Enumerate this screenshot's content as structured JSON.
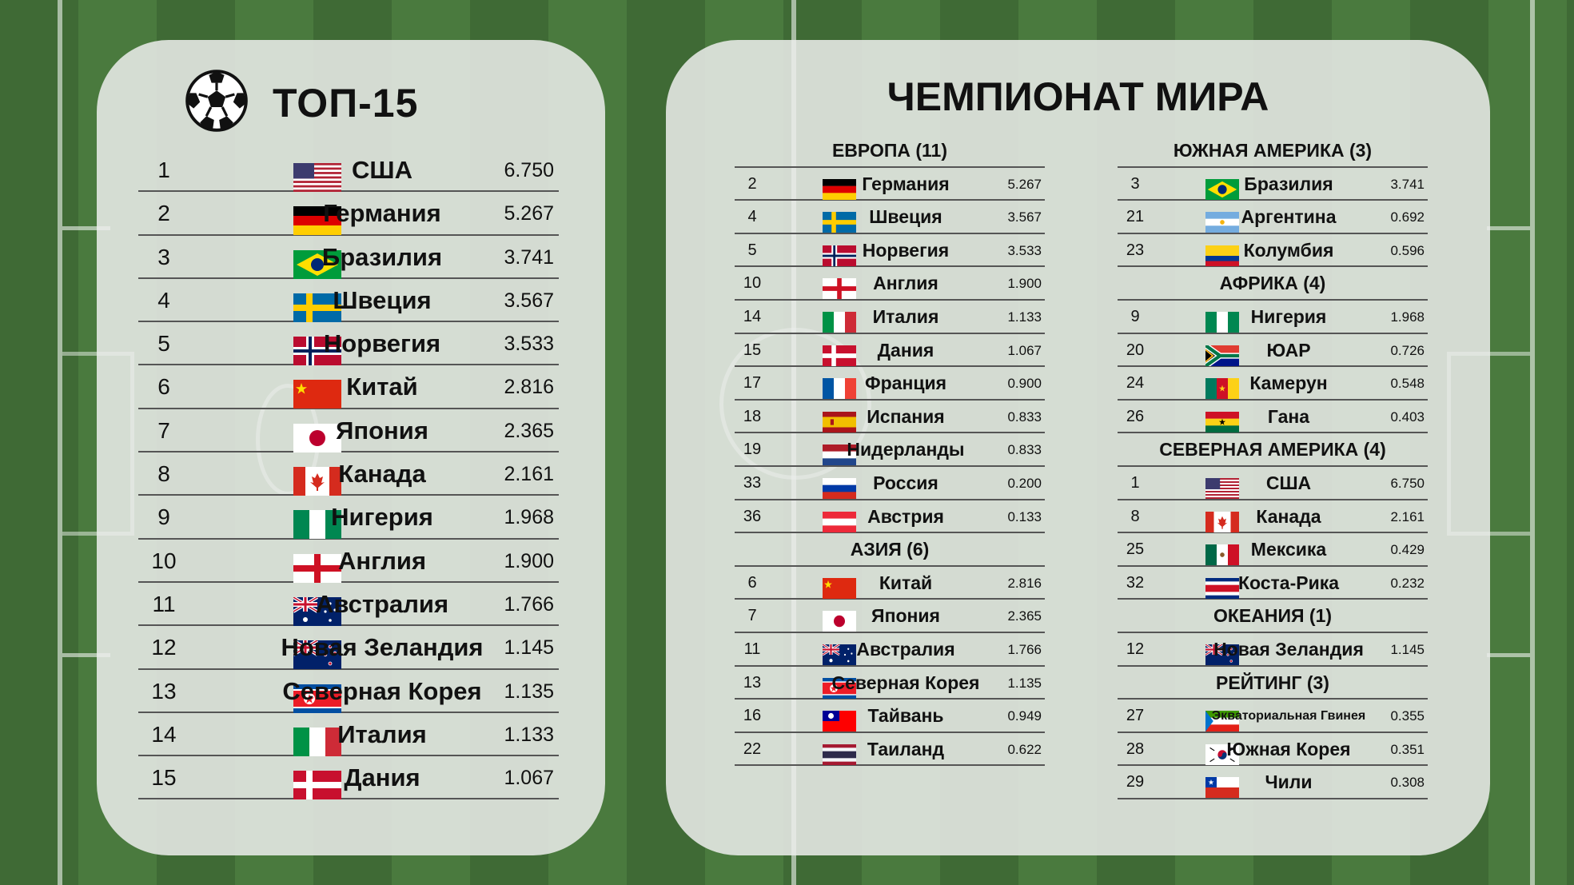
{
  "left": {
    "title": "ТОП-15",
    "rows": [
      {
        "rank": "1",
        "flag": "usa-flag-icon",
        "name": "США",
        "value": "6.750"
      },
      {
        "rank": "2",
        "flag": "germany-flag-icon",
        "name": "Германия",
        "value": "5.267"
      },
      {
        "rank": "3",
        "flag": "brazil-flag-icon",
        "name": "Бразилия",
        "value": "3.741"
      },
      {
        "rank": "4",
        "flag": "sweden-flag-icon",
        "name": "Швеция",
        "value": "3.567"
      },
      {
        "rank": "5",
        "flag": "norway-flag-icon",
        "name": "Норвегия",
        "value": "3.533"
      },
      {
        "rank": "6",
        "flag": "china-flag-icon",
        "name": "Китай",
        "value": "2.816"
      },
      {
        "rank": "7",
        "flag": "japan-flag-icon",
        "name": "Япония",
        "value": "2.365"
      },
      {
        "rank": "8",
        "flag": "canada-flag-icon",
        "name": "Канада",
        "value": "2.161"
      },
      {
        "rank": "9",
        "flag": "nigeria-flag-icon",
        "name": "Нигерия",
        "value": "1.968"
      },
      {
        "rank": "10",
        "flag": "england-flag-icon",
        "name": "Англия",
        "value": "1.900"
      },
      {
        "rank": "11",
        "flag": "australia-flag-icon",
        "name": "Австралия",
        "value": "1.766"
      },
      {
        "rank": "12",
        "flag": "new-zealand-flag-icon",
        "name": "Новая Зеландия",
        "value": "1.145"
      },
      {
        "rank": "13",
        "flag": "north-korea-flag-icon",
        "name": "Северная Корея",
        "value": "1.135"
      },
      {
        "rank": "14",
        "flag": "italy-flag-icon",
        "name": "Италия",
        "value": "1.133"
      },
      {
        "rank": "15",
        "flag": "denmark-flag-icon",
        "name": "Дания",
        "value": "1.067"
      }
    ]
  },
  "right": {
    "title": "ЧЕМПИОНАТ МИРА",
    "column_a": [
      {
        "section": "ЕВРОПА (11)",
        "rows": [
          {
            "rank": "2",
            "flag": "germany-flag-icon",
            "name": "Германия",
            "value": "5.267"
          },
          {
            "rank": "4",
            "flag": "sweden-flag-icon",
            "name": "Швеция",
            "value": "3.567"
          },
          {
            "rank": "5",
            "flag": "norway-flag-icon",
            "name": "Норвегия",
            "value": "3.533"
          },
          {
            "rank": "10",
            "flag": "england-flag-icon",
            "name": "Англия",
            "value": "1.900"
          },
          {
            "rank": "14",
            "flag": "italy-flag-icon",
            "name": "Италия",
            "value": "1.133"
          },
          {
            "rank": "15",
            "flag": "denmark-flag-icon",
            "name": "Дания",
            "value": "1.067"
          },
          {
            "rank": "17",
            "flag": "france-flag-icon",
            "name": "Франция",
            "value": "0.900"
          },
          {
            "rank": "18",
            "flag": "spain-flag-icon",
            "name": "Испания",
            "value": "0.833"
          },
          {
            "rank": "19",
            "flag": "netherlands-flag-icon",
            "name": "Нидерланды",
            "value": "0.833"
          },
          {
            "rank": "33",
            "flag": "russia-flag-icon",
            "name": "Россия",
            "value": "0.200"
          },
          {
            "rank": "36",
            "flag": "austria-flag-icon",
            "name": "Австрия",
            "value": "0.133"
          }
        ]
      },
      {
        "section": "АЗИЯ (6)",
        "rows": [
          {
            "rank": "6",
            "flag": "china-flag-icon",
            "name": "Китай",
            "value": "2.816"
          },
          {
            "rank": "7",
            "flag": "japan-flag-icon",
            "name": "Япония",
            "value": "2.365"
          },
          {
            "rank": "11",
            "flag": "australia-flag-icon",
            "name": "Австралия",
            "value": "1.766"
          },
          {
            "rank": "13",
            "flag": "north-korea-flag-icon",
            "name": "Северная Корея",
            "value": "1.135"
          },
          {
            "rank": "16",
            "flag": "taiwan-flag-icon",
            "name": "Тайвань",
            "value": "0.949"
          },
          {
            "rank": "22",
            "flag": "thailand-flag-icon",
            "name": "Таиланд",
            "value": "0.622"
          }
        ]
      }
    ],
    "column_b": [
      {
        "section": "ЮЖНАЯ АМЕРИКА (3)",
        "rows": [
          {
            "rank": "3",
            "flag": "brazil-flag-icon",
            "name": "Бразилия",
            "value": "3.741"
          },
          {
            "rank": "21",
            "flag": "argentina-flag-icon",
            "name": "Аргентина",
            "value": "0.692"
          },
          {
            "rank": "23",
            "flag": "colombia-flag-icon",
            "name": "Колумбия",
            "value": "0.596"
          }
        ]
      },
      {
        "section": "АФРИКА (4)",
        "rows": [
          {
            "rank": "9",
            "flag": "nigeria-flag-icon",
            "name": "Нигерия",
            "value": "1.968"
          },
          {
            "rank": "20",
            "flag": "south-africa-flag-icon",
            "name": "ЮАР",
            "value": "0.726"
          },
          {
            "rank": "24",
            "flag": "cameroon-flag-icon",
            "name": "Камерун",
            "value": "0.548"
          },
          {
            "rank": "26",
            "flag": "ghana-flag-icon",
            "name": "Гана",
            "value": "0.403"
          }
        ]
      },
      {
        "section": "СЕВЕРНАЯ АМЕРИКА (4)",
        "rows": [
          {
            "rank": "1",
            "flag": "usa-flag-icon",
            "name": "США",
            "value": "6.750"
          },
          {
            "rank": "8",
            "flag": "canada-flag-icon",
            "name": "Канада",
            "value": "2.161"
          },
          {
            "rank": "25",
            "flag": "mexico-flag-icon",
            "name": "Мексика",
            "value": "0.429"
          },
          {
            "rank": "32",
            "flag": "costa-rica-flag-icon",
            "name": "Коста-Рика",
            "value": "0.232"
          }
        ]
      },
      {
        "section": "ОКЕАНИЯ (1)",
        "rows": [
          {
            "rank": "12",
            "flag": "new-zealand-flag-icon",
            "name": "Новая Зеландия",
            "value": "1.145"
          }
        ]
      },
      {
        "section": "РЕЙТИНГ (3)",
        "rows": [
          {
            "rank": "27",
            "flag": "equatorial-guinea-flag-icon",
            "name": "Экваториальная  Гвинея",
            "value": "0.355",
            "small": true
          },
          {
            "rank": "28",
            "flag": "south-korea-flag-icon",
            "name": "Южная Корея",
            "value": "0.351"
          },
          {
            "rank": "29",
            "flag": "chile-flag-icon",
            "name": "Чили",
            "value": "0.308"
          }
        ]
      }
    ]
  },
  "colors": {
    "panel_bg": "#eceeec",
    "grass_dark": "#3f6a35",
    "grass_light": "#4a7a3e",
    "text": "#111111"
  }
}
